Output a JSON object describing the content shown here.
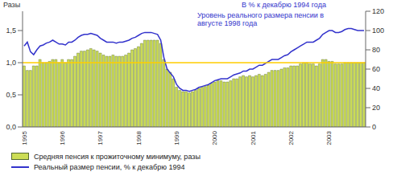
{
  "chart_data": {
    "type": "bar",
    "y_label": "Разы",
    "y2_label": "В % к декабрю 1994 года",
    "annotation": "Уровень реального размера пенсии в августе 1998 года",
    "categories": [
      "1995",
      null,
      null,
      null,
      null,
      null,
      null,
      null,
      null,
      null,
      null,
      null,
      "1996",
      null,
      null,
      null,
      null,
      null,
      null,
      null,
      null,
      null,
      null,
      null,
      "1997",
      null,
      null,
      null,
      null,
      null,
      null,
      null,
      null,
      null,
      null,
      null,
      "1998",
      null,
      null,
      null,
      null,
      null,
      null,
      null,
      null,
      null,
      null,
      null,
      "1999",
      null,
      null,
      null,
      null,
      null,
      null,
      null,
      null,
      null,
      null,
      null,
      "2000",
      null,
      null,
      null,
      null,
      null,
      null,
      null,
      null,
      null,
      null,
      null,
      "2001",
      null,
      null,
      null,
      null,
      null,
      null,
      null,
      null,
      null,
      null,
      null,
      "2002",
      null,
      null,
      null,
      null,
      null,
      null,
      null,
      null,
      null,
      null,
      null,
      "2003",
      null,
      null,
      null,
      null,
      null,
      null,
      null,
      null,
      null,
      null,
      null
    ],
    "series": [
      {
        "name": "Средняя пенсия к прожиточному минимуму, разы",
        "type": "bar",
        "color": "#ccdd55",
        "values": [
          0.95,
          0.88,
          0.88,
          0.95,
          0.95,
          1.05,
          1.0,
          1.0,
          1.02,
          1.05,
          1.05,
          1.0,
          1.05,
          1.0,
          1.05,
          1.05,
          1.1,
          1.15,
          1.18,
          1.18,
          1.2,
          1.22,
          1.2,
          1.18,
          1.15,
          1.12,
          1.1,
          1.1,
          1.12,
          1.1,
          1.1,
          1.1,
          1.12,
          1.15,
          1.2,
          1.22,
          1.25,
          1.3,
          1.35,
          1.35,
          1.35,
          1.35,
          1.35,
          1.3,
          1.05,
          0.9,
          0.85,
          0.75,
          0.62,
          0.57,
          0.55,
          0.55,
          0.53,
          0.55,
          0.57,
          0.6,
          0.62,
          0.63,
          0.65,
          0.68,
          0.7,
          0.72,
          0.72,
          0.7,
          0.7,
          0.72,
          0.75,
          0.75,
          0.78,
          0.8,
          0.78,
          0.8,
          0.78,
          0.8,
          0.82,
          0.8,
          0.82,
          0.85,
          0.88,
          0.88,
          0.88,
          0.9,
          0.92,
          0.92,
          0.95,
          0.95,
          0.95,
          0.98,
          1.0,
          1.0,
          0.98,
          0.98,
          0.95,
          0.98,
          1.05,
          1.05,
          1.02,
          1.02,
          0.98,
          0.98,
          0.98,
          1.0,
          1.0,
          1.0,
          1.0,
          1.0,
          1.0,
          1.0
        ]
      },
      {
        "name": "Реальный размер пенсии, % к декабрю 1994",
        "type": "line",
        "axis": "y2",
        "color": "#3333cc",
        "values": [
          84,
          88,
          78,
          75,
          80,
          84,
          85,
          87,
          88,
          90,
          88,
          86,
          86,
          85,
          88,
          88,
          90,
          93,
          95,
          96,
          96,
          97,
          96,
          95,
          92,
          90,
          88,
          88,
          88,
          87,
          88,
          88,
          89,
          90,
          92,
          93,
          95,
          97,
          98,
          98,
          98,
          97,
          96,
          90,
          72,
          60,
          56,
          52,
          44,
          40,
          38,
          38,
          37,
          38,
          39,
          41,
          42,
          43,
          44,
          46,
          48,
          49,
          50,
          50,
          50,
          52,
          54,
          55,
          56,
          58,
          58,
          60,
          60,
          62,
          64,
          64,
          66,
          68,
          70,
          70,
          70,
          72,
          74,
          75,
          78,
          80,
          82,
          84,
          86,
          88,
          88,
          88,
          90,
          92,
          96,
          98,
          100,
          100,
          98,
          98,
          99,
          101,
          102,
          102,
          101,
          100,
          100,
          100
        ]
      }
    ],
    "ylim": [
      0,
      1.8
    ],
    "yticks": [
      {
        "value": 0,
        "label": "0,0"
      },
      {
        "value": 0.5,
        "label": "0,5"
      },
      {
        "value": 1.0,
        "label": "1,0"
      },
      {
        "value": 1.5,
        "label": "1,5"
      }
    ],
    "y2lim": [
      0,
      120
    ],
    "y2ticks": [
      0,
      20,
      40,
      60,
      80,
      100,
      120
    ],
    "hline": {
      "value": 1.0,
      "color": "#ffcc00"
    },
    "grid": false,
    "legend": "bottom"
  }
}
